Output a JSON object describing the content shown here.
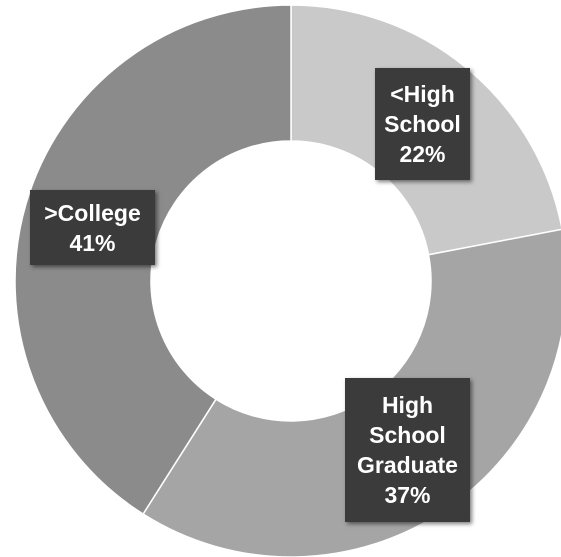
{
  "chart_data": {
    "type": "donut",
    "categories": [
      "<High School",
      "High School Graduate",
      ">College"
    ],
    "values": [
      22,
      37,
      41
    ],
    "value_labels": [
      "22%",
      "37%",
      "41%"
    ],
    "colors": [
      "#c9c9c9",
      "#a5a5a5",
      "#8b8b8b"
    ]
  }
}
